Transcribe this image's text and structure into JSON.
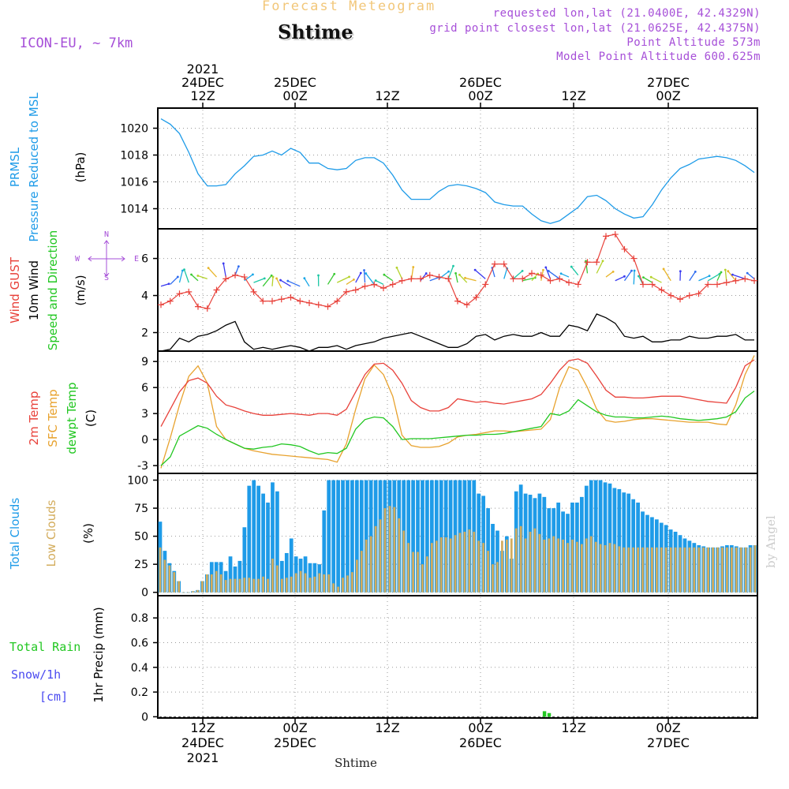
{
  "header": {
    "title_top": "Forecast Meteogram",
    "location": "Shtime",
    "model": "ICON-EU, ~ 7km",
    "requested": "requested lon,lat (21.0400E, 42.4329N)",
    "grid_point": "grid point closest lon,lat (21.0625E, 42.4375N)",
    "point_altitude": "Point Altitude 573m",
    "model_altitude": "Model Point Altitude 600.625m"
  },
  "footer": {
    "location": "Shtime",
    "signature": "by Angel"
  },
  "colors": {
    "title_top": "#f2c77a",
    "purple": "#a64fd8",
    "pressure": "#1e9be8",
    "gust": "#e8413a",
    "wind": "#000000",
    "direction": "#22c722",
    "temp2m": "#e8413a",
    "sfc": "#e8a22e",
    "dewpt": "#22c722",
    "total_clouds": "#1e9be8",
    "low_clouds": "#d3ac5c",
    "rain": "#22c722",
    "snow": "#4a4af0"
  },
  "top_axis": [
    "2021\n24DEC\n12Z",
    "25DEC\n00Z",
    "12Z",
    "26DEC\n00Z",
    "12Z",
    "27DEC\n00Z"
  ],
  "bottom_axis": [
    "12Z\n24DEC\n2021",
    "00Z\n25DEC",
    "12Z",
    "00Z\n26DEC",
    "12Z",
    "00Z\n27DEC"
  ],
  "compass": {
    "n": "N",
    "s": "S",
    "w": "W",
    "e": "E"
  },
  "chart_data": [
    {
      "id": "pressure",
      "type": "line",
      "labels": [
        "PRMSL",
        "Pressure Reduced to MSL"
      ],
      "unit": "(hPa)",
      "ylim": [
        1012.5,
        1021.5
      ],
      "yticks": [
        1014,
        1016,
        1018,
        1020
      ],
      "x": [
        0,
        1,
        2,
        3,
        4,
        5,
        6,
        7,
        8,
        9,
        10,
        11,
        12,
        13,
        14,
        15,
        16,
        17,
        18,
        19,
        20,
        21,
        22,
        23,
        24,
        25,
        26,
        27,
        28,
        29,
        30,
        31,
        32,
        33,
        34,
        35,
        36,
        37,
        38,
        39,
        40,
        41,
        42,
        43,
        44,
        45,
        46,
        47,
        48,
        49,
        50,
        51,
        52,
        53,
        54,
        55,
        56,
        57,
        58,
        59,
        60,
        61,
        62,
        63,
        64
      ],
      "series": [
        {
          "values": [
            1020.7,
            1020.3,
            1019.6,
            1018.2,
            1016.6,
            1015.7,
            1015.7,
            1015.8,
            1016.6,
            1017.2,
            1017.9,
            1018.0,
            1018.3,
            1018.0,
            1018.5,
            1018.2,
            1017.4,
            1017.4,
            1017.0,
            1016.9,
            1017.0,
            1017.6,
            1017.8,
            1017.8,
            1017.4,
            1016.5,
            1015.4,
            1014.7,
            1014.7,
            1014.7,
            1015.3,
            1015.7,
            1015.8,
            1015.7,
            1015.5,
            1015.2,
            1014.5,
            1014.3,
            1014.2,
            1014.2,
            1013.6,
            1013.1,
            1012.9,
            1013.1,
            1013.6,
            1014.1,
            1014.9,
            1015.0,
            1014.6,
            1014.0,
            1013.6,
            1013.3,
            1013.4,
            1014.3,
            1015.4,
            1016.3,
            1017.0,
            1017.3,
            1017.7,
            1017.8,
            1017.9,
            1017.8,
            1017.6,
            1017.2,
            1016.7
          ]
        }
      ]
    },
    {
      "id": "wind",
      "type": "line",
      "labels": [
        "Wind GUST",
        "10m Wind",
        "Speed and Direction"
      ],
      "unit": "(m/s)",
      "ylim": [
        1,
        7.6
      ],
      "yticks": [
        2,
        4,
        6
      ],
      "x": [
        0,
        1,
        2,
        3,
        4,
        5,
        6,
        7,
        8,
        9,
        10,
        11,
        12,
        13,
        14,
        15,
        16,
        17,
        18,
        19,
        20,
        21,
        22,
        23,
        24,
        25,
        26,
        27,
        28,
        29,
        30,
        31,
        32,
        33,
        34,
        35,
        36,
        37,
        38,
        39,
        40,
        41,
        42,
        43,
        44,
        45,
        46,
        47,
        48,
        49,
        50,
        51,
        52,
        53,
        54,
        55,
        56,
        57,
        58,
        59,
        60,
        61,
        62,
        63,
        64
      ],
      "series": [
        {
          "name": "Wind GUST",
          "values": [
            3.5,
            3.7,
            4.1,
            4.2,
            3.4,
            3.3,
            4.3,
            4.9,
            5.1,
            5.0,
            4.2,
            3.7,
            3.7,
            3.8,
            3.9,
            3.7,
            3.6,
            3.5,
            3.4,
            3.7,
            4.2,
            4.3,
            4.5,
            4.6,
            4.4,
            4.6,
            4.8,
            4.9,
            4.9,
            5.1,
            5.0,
            4.9,
            3.7,
            3.5,
            3.9,
            4.6,
            5.7,
            5.7,
            4.9,
            4.9,
            5.2,
            5.1,
            4.8,
            4.9,
            4.7,
            4.6,
            5.8,
            5.8,
            7.2,
            7.3,
            6.5,
            6.0,
            4.6,
            4.6,
            4.3,
            4.0,
            3.8,
            4.0,
            4.1,
            4.6,
            4.6,
            4.7,
            4.8,
            4.9,
            4.8
          ]
        },
        {
          "name": "10m Wind",
          "values": [
            1.0,
            1.1,
            1.7,
            1.5,
            1.8,
            1.9,
            2.1,
            2.4,
            2.6,
            1.5,
            1.1,
            1.2,
            1.1,
            1.2,
            1.3,
            1.2,
            1.0,
            1.2,
            1.2,
            1.3,
            1.1,
            1.3,
            1.4,
            1.5,
            1.7,
            1.8,
            1.9,
            2.0,
            1.8,
            1.6,
            1.4,
            1.2,
            1.2,
            1.4,
            1.8,
            1.9,
            1.6,
            1.8,
            1.9,
            1.8,
            1.8,
            2.0,
            1.8,
            1.8,
            2.4,
            2.3,
            2.1,
            3.0,
            2.8,
            2.5,
            1.8,
            1.7,
            1.8,
            1.5,
            1.5,
            1.6,
            1.6,
            1.8,
            1.7,
            1.7,
            1.8,
            1.8,
            1.9,
            1.6,
            1.6
          ]
        },
        {
          "name": "Speed and Direction",
          "values": [
            4.5,
            4.6,
            4.7,
            4.7,
            4.8,
            4.9,
            5.0,
            5.0,
            5.1,
            4.8,
            4.7,
            4.5,
            4.5,
            4.4,
            4.5,
            4.5,
            4.5,
            4.5,
            4.6,
            4.7,
            4.6,
            4.7,
            4.7,
            4.6,
            4.6,
            4.8,
            4.9,
            4.8,
            4.8,
            4.8,
            4.9,
            4.9,
            4.7,
            4.7,
            4.8,
            4.9,
            5.0,
            4.9,
            4.9,
            4.8,
            4.8,
            4.8,
            4.9,
            4.9,
            5.0,
            5.1,
            5.2,
            5.2,
            5.0,
            4.8,
            4.8,
            4.6,
            4.6,
            4.7,
            4.7,
            4.8,
            4.8,
            4.8,
            4.8,
            4.8,
            4.8,
            4.8,
            4.8,
            4.9,
            4.9
          ]
        }
      ]
    },
    {
      "id": "temperature",
      "type": "line",
      "labels": [
        "2m Temp",
        "SFC Temp",
        "dewpt Temp"
      ],
      "unit": "(C)",
      "ylim": [
        -3.9,
        10.2
      ],
      "yticks": [
        -3,
        0,
        3,
        6,
        9
      ],
      "x": [
        0,
        1,
        2,
        3,
        4,
        5,
        6,
        7,
        8,
        9,
        10,
        11,
        12,
        13,
        14,
        15,
        16,
        17,
        18,
        19,
        20,
        21,
        22,
        23,
        24,
        25,
        26,
        27,
        28,
        29,
        30,
        31,
        32,
        33,
        34,
        35,
        36,
        37,
        38,
        39,
        40,
        41,
        42,
        43,
        44,
        45,
        46,
        47,
        48,
        49,
        50,
        51,
        52,
        53,
        54,
        55,
        56,
        57,
        58,
        59,
        60,
        61,
        62,
        63,
        64
      ],
      "series": [
        {
          "name": "2m Temp",
          "values": [
            1.5,
            3.5,
            5.5,
            6.8,
            7.1,
            6.5,
            5.0,
            4.0,
            3.7,
            3.3,
            3.0,
            2.8,
            2.8,
            2.9,
            3.0,
            2.9,
            2.8,
            3.0,
            3.0,
            2.8,
            3.5,
            5.5,
            7.5,
            8.7,
            8.8,
            8.0,
            6.5,
            4.5,
            3.7,
            3.3,
            3.3,
            3.7,
            4.7,
            4.5,
            4.3,
            4.4,
            4.2,
            4.1,
            4.3,
            4.5,
            4.7,
            5.2,
            6.5,
            8.0,
            9.1,
            9.3,
            8.8,
            7.3,
            5.7,
            4.9,
            4.9,
            4.8,
            4.8,
            4.9,
            5.0,
            5.0,
            5.0,
            4.8,
            4.6,
            4.4,
            4.3,
            4.2,
            6.0,
            8.5,
            9.2
          ]
        },
        {
          "name": "SFC Temp",
          "values": [
            -3.3,
            0.2,
            4.0,
            7.3,
            8.5,
            6.5,
            1.5,
            0.0,
            -0.5,
            -1.0,
            -1.3,
            -1.5,
            -1.7,
            -1.8,
            -1.9,
            -2.0,
            -2.1,
            -2.2,
            -2.3,
            -2.6,
            -0.5,
            3.5,
            7.0,
            8.6,
            7.5,
            5.0,
            0.5,
            -0.7,
            -0.9,
            -0.9,
            -0.8,
            -0.4,
            0.3,
            0.5,
            0.6,
            0.8,
            1.0,
            1.0,
            0.9,
            1.0,
            1.1,
            1.2,
            2.3,
            6.0,
            8.4,
            8.0,
            6.0,
            3.5,
            2.2,
            2.0,
            2.1,
            2.3,
            2.4,
            2.4,
            2.3,
            2.2,
            2.1,
            2.0,
            2.0,
            2.0,
            1.8,
            1.7,
            4.0,
            7.5,
            9.7
          ]
        },
        {
          "name": "dewpt Temp",
          "values": [
            -3.0,
            -2.0,
            0.4,
            1.0,
            1.6,
            1.3,
            0.6,
            0.0,
            -0.5,
            -1.0,
            -1.1,
            -0.9,
            -0.8,
            -0.5,
            -0.6,
            -0.8,
            -1.3,
            -1.7,
            -1.5,
            -1.6,
            -1.0,
            1.2,
            2.3,
            2.6,
            2.5,
            1.5,
            0.0,
            0.1,
            0.1,
            0.1,
            0.2,
            0.3,
            0.4,
            0.5,
            0.5,
            0.6,
            0.6,
            0.7,
            0.9,
            1.1,
            1.3,
            1.5,
            3.0,
            2.8,
            3.3,
            4.6,
            3.9,
            3.2,
            2.8,
            2.6,
            2.6,
            2.5,
            2.5,
            2.6,
            2.7,
            2.6,
            2.4,
            2.3,
            2.2,
            2.3,
            2.4,
            2.6,
            3.2,
            4.8,
            5.6
          ]
        }
      ]
    },
    {
      "id": "clouds",
      "type": "bar",
      "labels": [
        "Total Clouds",
        "Low Clouds"
      ],
      "unit": "(%)",
      "ylim": [
        -3,
        106
      ],
      "yticks": [
        0,
        25,
        50,
        75,
        100
      ],
      "x": [
        0,
        1,
        2,
        3,
        4,
        5,
        6,
        7,
        8,
        9,
        10,
        11,
        12,
        13,
        14,
        15,
        16,
        17,
        18,
        19,
        20,
        21,
        22,
        23,
        24,
        25,
        26,
        27,
        28,
        29,
        30,
        31,
        32,
        33,
        34,
        35,
        36,
        37,
        38,
        39,
        40,
        41,
        42,
        43,
        44,
        45,
        46,
        47,
        48,
        49,
        50,
        51,
        52,
        53,
        54,
        55,
        56,
        57,
        58,
        59,
        60,
        61,
        62,
        63,
        64,
        65,
        66,
        67,
        68,
        69,
        70,
        71,
        72,
        73,
        74,
        75,
        76,
        77,
        78,
        79,
        80,
        81,
        82,
        83,
        84,
        85,
        86,
        87,
        88,
        89,
        90,
        91,
        92,
        93,
        94,
        95,
        96,
        97,
        98,
        99,
        100,
        101,
        102,
        103,
        104,
        105,
        106,
        107,
        108,
        109,
        110,
        111,
        112,
        113,
        114,
        115,
        116,
        117,
        118,
        119,
        120,
        121,
        122,
        123,
        124,
        125,
        126,
        127
      ],
      "series": [
        {
          "name": "Total Clouds",
          "values": [
            63,
            37,
            26,
            19,
            10,
            0,
            0,
            1,
            2,
            10,
            16,
            27,
            27,
            27,
            19,
            32,
            23,
            28,
            58,
            95,
            100,
            95,
            88,
            80,
            98,
            90,
            28,
            35,
            48,
            32,
            30,
            32,
            26,
            26,
            25,
            73,
            100,
            100,
            100,
            100,
            100,
            100,
            100,
            100,
            100,
            100,
            100,
            100,
            100,
            100,
            100,
            100,
            100,
            100,
            100,
            100,
            100,
            100,
            100,
            100,
            100,
            100,
            100,
            100,
            100,
            100,
            100,
            100,
            88,
            86,
            75,
            61,
            55,
            37,
            50,
            30,
            90,
            96,
            88,
            87,
            84,
            88,
            85,
            75,
            75,
            80,
            72,
            70,
            80,
            80,
            85,
            95,
            100,
            100,
            100,
            98,
            97,
            93,
            92,
            89,
            88,
            83,
            80,
            72,
            69,
            67,
            65,
            62,
            60,
            56,
            54,
            51,
            48,
            46,
            44,
            42,
            41,
            40,
            40,
            40,
            41,
            42,
            42,
            41,
            40,
            40,
            42,
            42
          ]
        },
        {
          "name": "Low Clouds",
          "values": [
            40,
            29,
            24,
            18,
            10,
            0,
            0,
            1,
            2,
            10,
            16,
            16,
            19,
            16,
            11,
            12,
            12,
            12,
            13,
            13,
            12,
            12,
            14,
            12,
            30,
            24,
            12,
            13,
            14,
            17,
            19,
            17,
            13,
            14,
            17,
            16,
            16,
            8,
            5,
            13,
            15,
            18,
            29,
            37,
            47,
            50,
            59,
            65,
            75,
            77,
            76,
            66,
            55,
            44,
            36,
            36,
            25,
            32,
            44,
            46,
            49,
            49,
            48,
            51,
            53,
            54,
            56,
            54,
            46,
            44,
            37,
            25,
            27,
            46,
            47,
            48,
            57,
            59,
            48,
            54,
            57,
            52,
            47,
            48,
            50,
            48,
            47,
            44,
            47,
            45,
            43,
            48,
            50,
            45,
            43,
            42,
            44,
            43,
            41,
            40,
            40,
            40,
            40,
            40,
            40,
            40,
            40,
            40,
            40,
            40,
            40,
            40,
            40,
            40,
            40,
            40,
            40,
            40,
            40,
            40,
            40,
            40,
            40,
            40,
            40,
            40,
            40,
            42
          ]
        }
      ]
    },
    {
      "id": "precip",
      "type": "bar",
      "labels": [
        "Total Rain",
        "Snow/1h",
        "[cm]"
      ],
      "unit": "1hr Precip (mm)",
      "ylim": [
        -0.01,
        0.98
      ],
      "yticks": [
        0,
        0.2,
        0.4,
        0.6,
        0.8
      ],
      "x": [
        82,
        83
      ],
      "series": [
        {
          "name": "Total Rain",
          "values": [
            0.045,
            0.03
          ]
        },
        {
          "name": "Snow/1h",
          "values": [
            0,
            0
          ]
        }
      ]
    }
  ]
}
